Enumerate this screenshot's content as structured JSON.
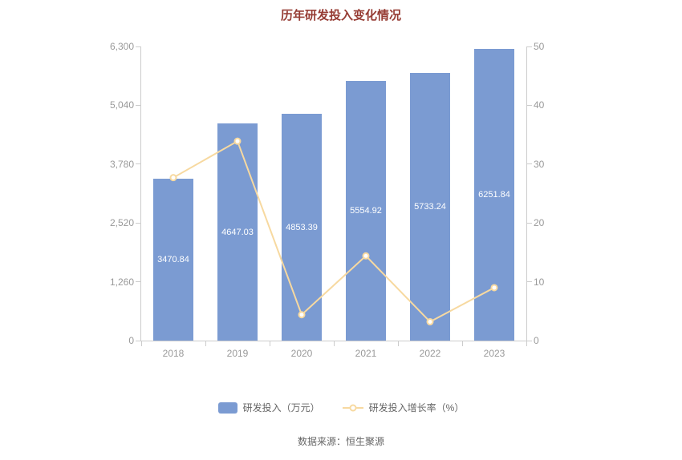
{
  "chart_data": {
    "type": "bar",
    "title": "历年研发投入变化情况",
    "categories": [
      "2018",
      "2019",
      "2020",
      "2021",
      "2022",
      "2023"
    ],
    "series": [
      {
        "name": "研发投入（万元）",
        "type": "bar",
        "axis": "left",
        "values": [
          3470.84,
          4647.03,
          4853.39,
          5554.92,
          5733.24,
          6251.84
        ],
        "labels": [
          "3470.84",
          "4647.03",
          "4853.39",
          "5554.92",
          "5733.24",
          "6251.84"
        ]
      },
      {
        "name": "研发投入增长率（%）",
        "type": "line",
        "axis": "right",
        "values": [
          27.7,
          33.9,
          4.4,
          14.4,
          3.2,
          9.0
        ]
      }
    ],
    "left_axis": {
      "max": 6300,
      "min": 0,
      "ticks": [
        "6,300",
        "5,040",
        "3,780",
        "2,520",
        "1,260",
        "0"
      ]
    },
    "right_axis": {
      "max": 50,
      "min": 0,
      "ticks": [
        "50",
        "40",
        "30",
        "20",
        "10",
        "0"
      ]
    },
    "grid": false,
    "legend_position": "bottom"
  },
  "legend": {
    "bar_label": "研发投入（万元）",
    "line_label": "研发投入增长率（%）"
  },
  "footer": {
    "source": "数据来源：恒生聚源"
  },
  "colors": {
    "bar": "#7b9bd2",
    "line": "#f7d9a0",
    "title": "#963c34",
    "axis_text": "#999999",
    "axis_line": "#cccccc",
    "bar_label": "#ffffff"
  }
}
